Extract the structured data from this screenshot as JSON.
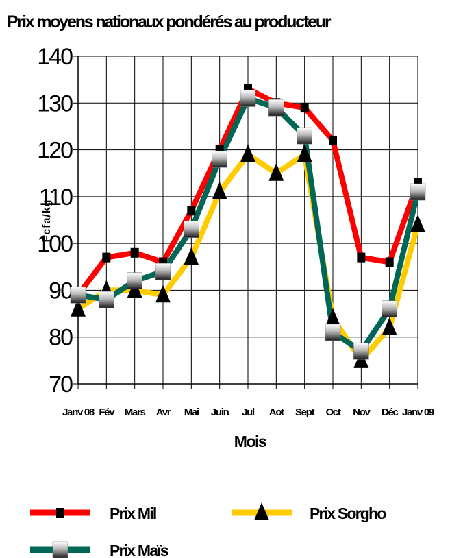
{
  "chart_data": {
    "type": "line",
    "title": "Prix moyens nationaux pondérés au producteur",
    "xlabel": "Mois",
    "ylabel": "Fcfa/kg",
    "ylim": [
      70,
      140
    ],
    "yticks": [
      70,
      80,
      90,
      100,
      110,
      120,
      130,
      140
    ],
    "grid": true,
    "legend_position": "bottom",
    "categories": [
      "Janv 08",
      "Fév",
      "Mars",
      "Avr",
      "Mai",
      "Juin",
      "Jul",
      "Aot",
      "Sept",
      "Oct",
      "Nov",
      "Déc",
      "Janv 09"
    ],
    "series": [
      {
        "name": "Prix Mil",
        "color": "#ff0000",
        "marker": "square-small",
        "values": [
          89,
          97,
          98,
          96,
          107,
          120,
          133,
          130,
          129,
          122,
          97,
          96,
          113
        ]
      },
      {
        "name": "Prix Sorgho",
        "color": "#ffcc00",
        "marker": "triangle",
        "values": [
          86,
          90,
          90,
          89,
          97,
          111,
          119,
          115,
          119,
          84,
          75,
          82,
          104
        ]
      },
      {
        "name": "Prix Maïs",
        "color": "#006655",
        "marker": "square-gradient",
        "values": [
          89,
          88,
          92,
          94,
          103,
          118,
          131,
          129,
          123,
          81,
          77,
          86,
          111
        ]
      }
    ]
  }
}
